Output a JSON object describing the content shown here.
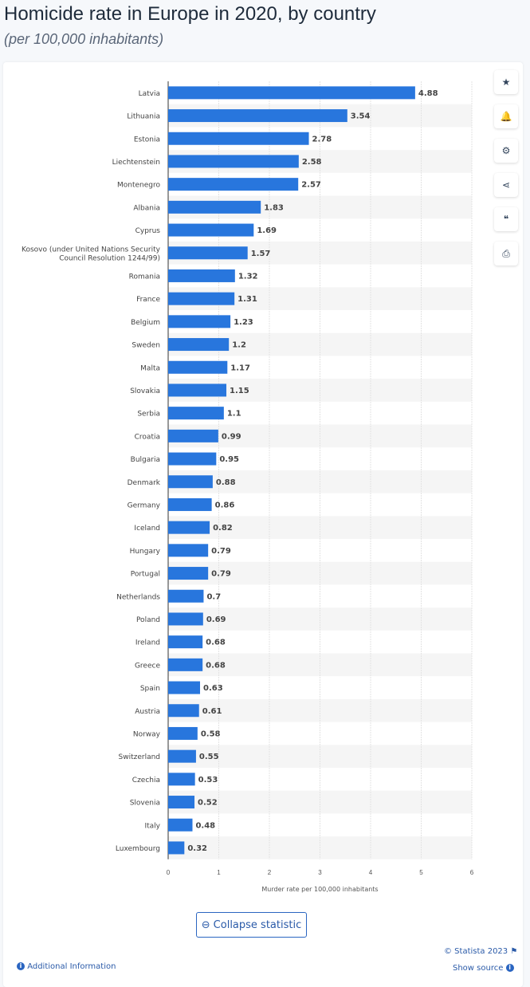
{
  "header": {
    "title": "Homicide rate in Europe in 2020, by country",
    "subtitle": "(per 100,000 inhabitants)"
  },
  "sidebar": [
    {
      "name": "star-icon",
      "glyph": "★"
    },
    {
      "name": "bell-icon",
      "glyph": "🔔"
    },
    {
      "name": "gear-icon",
      "glyph": "⚙"
    },
    {
      "name": "share-icon",
      "glyph": "⋖"
    },
    {
      "name": "quote-icon",
      "glyph": "❝"
    },
    {
      "name": "print-icon",
      "glyph": "⎙"
    }
  ],
  "chart_data": {
    "type": "bar",
    "orientation": "horizontal",
    "categories": [
      "Latvia",
      "Lithuania",
      "Estonia",
      "Liechtenstein",
      "Montenegro",
      "Albania",
      "Cyprus",
      "Kosovo (under United Nations Security Council Resolution 1244/99)",
      "Romania",
      "France",
      "Belgium",
      "Sweden",
      "Malta",
      "Slovakia",
      "Serbia",
      "Croatia",
      "Bulgaria",
      "Denmark",
      "Germany",
      "Iceland",
      "Hungary",
      "Portugal",
      "Netherlands",
      "Poland",
      "Ireland",
      "Greece",
      "Spain",
      "Austria",
      "Norway",
      "Switzerland",
      "Czechia",
      "Slovenia",
      "Italy",
      "Luxembourg"
    ],
    "values": [
      4.88,
      3.54,
      2.78,
      2.58,
      2.57,
      1.83,
      1.69,
      1.57,
      1.32,
      1.31,
      1.23,
      1.2,
      1.17,
      1.15,
      1.1,
      0.99,
      0.95,
      0.88,
      0.86,
      0.82,
      0.79,
      0.79,
      0.7,
      0.69,
      0.68,
      0.68,
      0.63,
      0.61,
      0.58,
      0.55,
      0.53,
      0.52,
      0.48,
      0.32
    ],
    "value_labels": [
      "4.88",
      "3.54",
      "2.78",
      "2.58",
      "2.57",
      "1.83",
      "1.69",
      "1.57",
      "1.32",
      "1.31",
      "1.23",
      "1.2",
      "1.17",
      "1.15",
      "1.1",
      "0.99",
      "0.95",
      "0.88",
      "0.86",
      "0.82",
      "0.79",
      "0.79",
      "0.7",
      "0.69",
      "0.68",
      "0.68",
      "0.63",
      "0.61",
      "0.58",
      "0.55",
      "0.53",
      "0.52",
      "0.48",
      "0.32"
    ],
    "xlabel": "Murder rate per 100,000 inhabitants",
    "xlim": [
      0,
      6
    ],
    "xticks": [
      "0",
      "1",
      "2",
      "3",
      "4",
      "5",
      "6"
    ],
    "grid": true,
    "bar_color": "#2876dd"
  },
  "footer": {
    "collapse": "Collapse statistic",
    "copyright": "© Statista 2023",
    "additional": "Additional Information",
    "source": "Show source"
  }
}
